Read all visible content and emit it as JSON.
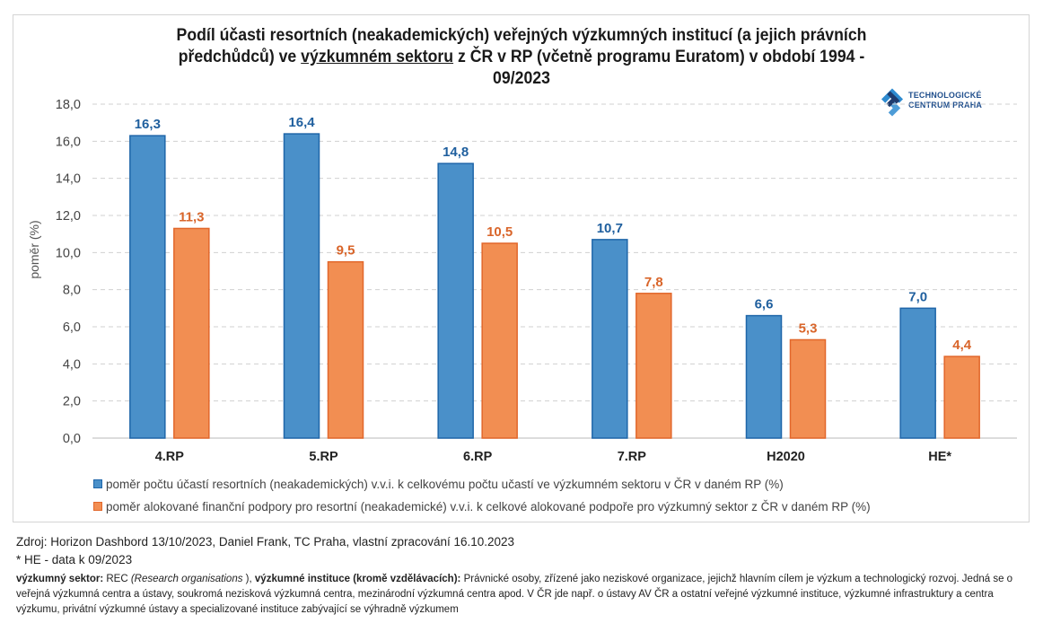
{
  "title": {
    "part1": "Podíl účasti resortních (neakademických) veřejných výzkumných institucí (a jejich právních předchůdců) ve ",
    "underlined": "výzkumném sektoru",
    "part2": " z ČR v RP (včetně programu Euratom) v období 1994 - 09/2023"
  },
  "logo": {
    "icon": "tc-praha-logo-icon",
    "line1": "TECHNOLOGICKÉ",
    "line2": "CENTRUM PRAHA",
    "colors": {
      "dark": "#1f3c6e",
      "light": "#2e8bd0"
    }
  },
  "colors": {
    "series1_fill": "#4a90c9",
    "series1_border": "#1f66a9",
    "series1_label": "#1f5f9e",
    "series2_fill": "#f28e52",
    "series2_border": "#e2672b",
    "series2_label": "#d9652a",
    "grid": "#d0d0d0",
    "axis": "#c8c8c8"
  },
  "chart_data": {
    "type": "bar",
    "title": "Podíl účasti resortních (neakademických) veřejných výzkumných institucí (a jejich právních předchůdců) ve výzkumném sektoru z ČR v RP (včetně programu Euratom) v období 1994 - 09/2023",
    "xlabel": "",
    "ylabel": "poměr (%)",
    "ylim": [
      0,
      18
    ],
    "yticks": [
      0,
      2,
      4,
      6,
      8,
      10,
      12,
      14,
      16,
      18
    ],
    "ytick_labels": [
      "0,0",
      "2,0",
      "4,0",
      "6,0",
      "8,0",
      "10,0",
      "12,0",
      "14,0",
      "16,0",
      "18,0"
    ],
    "grid": true,
    "legend_position": "bottom",
    "categories": [
      "4.RP",
      "5.RP",
      "6.RP",
      "7.RP",
      "H2020",
      "HE*"
    ],
    "series": [
      {
        "name": "poměr počtu účastí resortních (neakademických) v.v.i. k celkovému počtu učastí ve výzkumném sektoru v ČR v daném RP (%)",
        "values": [
          16.3,
          16.4,
          14.8,
          10.7,
          6.6,
          7.0
        ],
        "labels": [
          "16,3",
          "16,4",
          "14,8",
          "10,7",
          "6,6",
          "7,0"
        ]
      },
      {
        "name": "poměr alokované finanční podpory pro resortní (neakademické) v.v.i. k celkové alokované podpoře pro výzkumný sektor z ČR v daném RP (%)",
        "values": [
          11.3,
          9.5,
          10.5,
          7.8,
          5.3,
          4.4
        ],
        "labels": [
          "11,3",
          "9,5",
          "10,5",
          "7,8",
          "5,3",
          "4,4"
        ]
      }
    ]
  },
  "footer": {
    "source": "Zdroj: Horizon Dashbord 13/10/2023, Daniel Frank, TC Praha, vlastní zpracování 16.10.2023",
    "footnote": "* HE - data k 09/2023"
  },
  "note": {
    "term1": "výzkumný sektor:",
    "term1_value": " REC ",
    "term1_italic": "(Research organisations",
    "term1_close": " ), ",
    "term2": "výzkumné instituce (kromě vzdělávacích)",
    "term2_colon": ":",
    "definition": " Právnické osoby, zřízené jako neziskové organizace, jejichž hlavním cílem je výzkum a technologický rozvoj. Jedná se o veřejná výzkumná centra a ústavy, soukromá nezisková výzkumná centra, mezinárodní výzkumná centra apod. V ČR jde např. o ústavy AV ČR a ostatní veřejné výzkumné instituce, výzkumné infrastruktury a centra výzkumu, privátní výzkumné ústavy a specializované instituce zabývající se výhradně výzkumem"
  }
}
